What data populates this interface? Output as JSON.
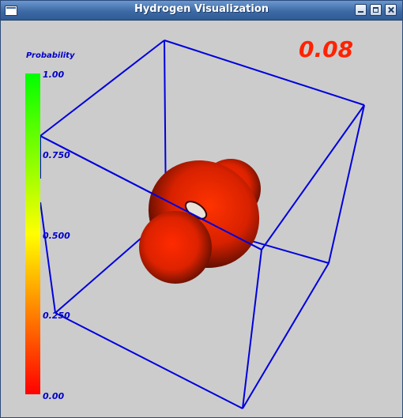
{
  "window": {
    "title": "Hydrogen Visualization",
    "buttons": [
      "menu",
      "minimize",
      "maximize",
      "close"
    ]
  },
  "scene": {
    "time_value": "0.08",
    "time_color": "#ff2200",
    "cube_color": "#0000dd",
    "orbital_color": "#cc2200",
    "background": "#cccccc"
  },
  "colorbar": {
    "title": "Probability",
    "tick_labels": [
      "1.00",
      "0.750",
      "0.500",
      "0.250",
      "0.00"
    ],
    "tick_values": [
      1.0,
      0.75,
      0.5,
      0.25,
      0.0
    ],
    "gradient_colors": [
      "#00ff00",
      "#ffff00",
      "#ff0000"
    ]
  }
}
